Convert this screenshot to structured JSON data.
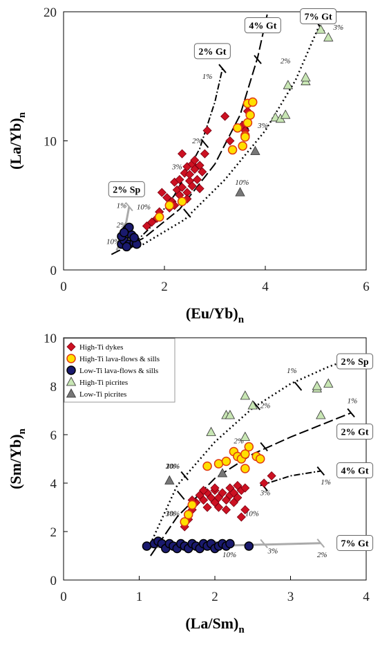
{
  "chart_data": [
    {
      "type": "scatter",
      "xlabel": "(Eu/Yb)",
      "xlabel_sub": "n",
      "ylabel": "(La/Yb)",
      "ylabel_sub": "n",
      "xlim": [
        0,
        6
      ],
      "ylim": [
        0,
        20
      ],
      "xticks": [
        "0",
        "2",
        "4",
        "6"
      ],
      "yticks": [
        "0",
        "10",
        "20"
      ],
      "series": [
        {
          "name": "High-Ti dykes",
          "marker": "diamond",
          "color": "#cc1122",
          "points": [
            [
              1.65,
              3.4
            ],
            [
              1.75,
              3.7
            ],
            [
              1.85,
              4.0
            ],
            [
              1.9,
              4.5
            ],
            [
              1.95,
              6.0
            ],
            [
              2.05,
              5.6
            ],
            [
              2.1,
              4.8
            ],
            [
              2.15,
              5.3
            ],
            [
              2.2,
              6.8
            ],
            [
              2.25,
              6.2
            ],
            [
              2.3,
              7.0
            ],
            [
              2.3,
              5.8
            ],
            [
              2.35,
              9.0
            ],
            [
              2.35,
              6.4
            ],
            [
              2.4,
              7.5
            ],
            [
              2.45,
              6.0
            ],
            [
              2.45,
              8.0
            ],
            [
              2.5,
              6.9
            ],
            [
              2.5,
              7.4
            ],
            [
              2.55,
              8.2
            ],
            [
              2.55,
              6.5
            ],
            [
              2.6,
              7.8
            ],
            [
              2.6,
              8.5
            ],
            [
              2.65,
              7.0
            ],
            [
              2.7,
              6.3
            ],
            [
              2.7,
              8.1
            ],
            [
              2.75,
              7.6
            ],
            [
              2.8,
              9.0
            ],
            [
              2.85,
              10.8
            ],
            [
              2.45,
              5.5
            ],
            [
              2.2,
              5.0
            ],
            [
              3.2,
              11.9
            ],
            [
              3.3,
              10.0
            ],
            [
              3.55,
              11.2
            ],
            [
              3.6,
              10.8
            ],
            [
              3.65,
              12.3
            ]
          ]
        },
        {
          "name": "High-Ti lava-flows & sills",
          "marker": "circle",
          "color": "#ffe000",
          "points": [
            [
              1.9,
              4.1
            ],
            [
              2.1,
              5.0
            ],
            [
              2.35,
              5.3
            ],
            [
              3.35,
              9.3
            ],
            [
              3.45,
              11.0
            ],
            [
              3.55,
              9.6
            ],
            [
              3.6,
              10.4
            ],
            [
              3.65,
              11.4
            ],
            [
              3.7,
              12.0
            ],
            [
              3.65,
              12.9
            ],
            [
              3.75,
              13.0
            ],
            [
              3.6,
              10.3
            ]
          ]
        },
        {
          "name": "Low-Ti lava-flows & sills",
          "marker": "circle",
          "color": "#1a1a6e",
          "points": [
            [
              1.15,
              2.0
            ],
            [
              1.2,
              2.3
            ],
            [
              1.25,
              3.1
            ],
            [
              1.3,
              2.0
            ],
            [
              1.35,
              2.7
            ],
            [
              1.4,
              2.1
            ],
            [
              1.15,
              2.6
            ],
            [
              1.3,
              3.3
            ],
            [
              1.25,
              1.8
            ],
            [
              1.45,
              2.0
            ],
            [
              1.4,
              2.5
            ],
            [
              1.2,
              2.9
            ]
          ]
        },
        {
          "name": "High-Ti picrites",
          "marker": "triangle",
          "color": "#c8e6b4",
          "points": [
            [
              4.2,
              11.8
            ],
            [
              4.3,
              11.7
            ],
            [
              4.4,
              12.0
            ],
            [
              4.45,
              14.3
            ],
            [
              4.8,
              14.6
            ],
            [
              4.8,
              14.9
            ],
            [
              5.1,
              18.6
            ],
            [
              5.25,
              18.0
            ]
          ]
        },
        {
          "name": "Low-Ti picrites",
          "marker": "triangle",
          "color": "#777777",
          "points": [
            [
              3.5,
              6.0
            ],
            [
              3.8,
              9.2
            ]
          ]
        }
      ],
      "models": [
        {
          "label": "2% Sp",
          "pct_labels": [
            "1%",
            "2%",
            "10%"
          ]
        },
        {
          "label": "2% Gt",
          "pct_labels": [
            "1%",
            "2%",
            "3%",
            "10%"
          ]
        },
        {
          "label": "4% Gt",
          "pct_labels": [
            "2%",
            "3%",
            "10%"
          ]
        },
        {
          "label": "7% Gt",
          "pct_labels": [
            "3%"
          ]
        }
      ]
    },
    {
      "type": "scatter",
      "xlabel": "(La/Sm)",
      "xlabel_sub": "n",
      "ylabel": "(Sm/Yb)",
      "ylabel_sub": "n",
      "xlim": [
        0,
        4
      ],
      "ylim": [
        0,
        10
      ],
      "xticks": [
        "0",
        "1",
        "2",
        "3",
        "4"
      ],
      "yticks": [
        "0",
        "2",
        "4",
        "6",
        "8",
        "10"
      ],
      "legend_position": "top-left",
      "series": [
        {
          "name": "High-Ti dykes",
          "marker": "diamond",
          "color": "#cc1122",
          "points": [
            [
              1.6,
              2.2
            ],
            [
              1.65,
              2.5
            ],
            [
              1.7,
              2.9
            ],
            [
              1.75,
              3.2
            ],
            [
              1.8,
              3.5
            ],
            [
              1.85,
              3.3
            ],
            [
              1.9,
              3.0
            ],
            [
              1.9,
              3.6
            ],
            [
              1.95,
              3.4
            ],
            [
              2.0,
              3.2
            ],
            [
              2.0,
              3.7
            ],
            [
              2.05,
              3.4
            ],
            [
              2.05,
              3.0
            ],
            [
              2.1,
              3.6
            ],
            [
              2.15,
              3.3
            ],
            [
              2.15,
              2.9
            ],
            [
              2.2,
              3.5
            ],
            [
              2.2,
              3.8
            ],
            [
              2.25,
              3.2
            ],
            [
              2.25,
              3.6
            ],
            [
              2.3,
              3.4
            ],
            [
              2.3,
              3.9
            ],
            [
              2.35,
              3.7
            ],
            [
              2.35,
              2.6
            ],
            [
              2.4,
              2.9
            ],
            [
              2.4,
              3.8
            ],
            [
              2.0,
              3.8
            ],
            [
              1.85,
              3.7
            ],
            [
              1.7,
              3.3
            ],
            [
              2.65,
              4.0
            ],
            [
              2.75,
              4.3
            ]
          ]
        },
        {
          "name": "High-Ti lava-flows & sills",
          "marker": "circle",
          "color": "#ffe000",
          "points": [
            [
              1.6,
              2.4
            ],
            [
              1.65,
              2.7
            ],
            [
              1.7,
              3.1
            ],
            [
              1.9,
              4.7
            ],
            [
              2.05,
              4.8
            ],
            [
              2.15,
              4.9
            ],
            [
              2.25,
              5.3
            ],
            [
              2.3,
              5.1
            ],
            [
              2.35,
              5.0
            ],
            [
              2.4,
              5.2
            ],
            [
              2.4,
              4.6
            ],
            [
              2.45,
              5.5
            ],
            [
              2.55,
              5.1
            ],
            [
              2.6,
              5.0
            ]
          ]
        },
        {
          "name": "Low-Ti lava-flows & sills",
          "marker": "circle",
          "color": "#1a1a6e",
          "points": [
            [
              1.1,
              1.4
            ],
            [
              1.2,
              1.5
            ],
            [
              1.25,
              1.6
            ],
            [
              1.3,
              1.5
            ],
            [
              1.35,
              1.3
            ],
            [
              1.4,
              1.5
            ],
            [
              1.45,
              1.4
            ],
            [
              1.5,
              1.3
            ],
            [
              1.55,
              1.5
            ],
            [
              1.6,
              1.4
            ],
            [
              1.65,
              1.3
            ],
            [
              1.7,
              1.5
            ],
            [
              1.75,
              1.4
            ],
            [
              1.8,
              1.3
            ],
            [
              1.85,
              1.5
            ],
            [
              1.9,
              1.4
            ],
            [
              1.95,
              1.5
            ],
            [
              2.0,
              1.3
            ],
            [
              2.05,
              1.4
            ],
            [
              2.1,
              1.5
            ],
            [
              2.15,
              1.4
            ],
            [
              2.2,
              1.5
            ],
            [
              2.45,
              1.4
            ]
          ]
        },
        {
          "name": "High-Ti picrites",
          "marker": "triangle",
          "color": "#c8e6b4",
          "points": [
            [
              1.95,
              6.1
            ],
            [
              2.15,
              6.8
            ],
            [
              2.2,
              6.8
            ],
            [
              2.4,
              5.9
            ],
            [
              2.4,
              7.6
            ],
            [
              2.5,
              7.2
            ],
            [
              3.35,
              7.9
            ],
            [
              3.35,
              8.0
            ],
            [
              3.4,
              6.8
            ],
            [
              3.5,
              8.1
            ]
          ]
        },
        {
          "name": "Low-Ti picrites",
          "marker": "triangle",
          "color": "#777777",
          "points": [
            [
              1.4,
              4.1
            ],
            [
              2.1,
              4.4
            ]
          ]
        }
      ],
      "models": [
        {
          "label": "7% Gt",
          "pct_labels": [
            "2%",
            "3%",
            "10%"
          ]
        },
        {
          "label": "4% Gt",
          "pct_labels": [
            "1%",
            "3%",
            "10%"
          ]
        },
        {
          "label": "2% Gt",
          "pct_labels": [
            "1%",
            "2%",
            "3%",
            "10%"
          ]
        },
        {
          "label": "2% Sp",
          "pct_labels": [
            "1%",
            "2%",
            "3%",
            "10%",
            "20%"
          ]
        }
      ]
    }
  ]
}
